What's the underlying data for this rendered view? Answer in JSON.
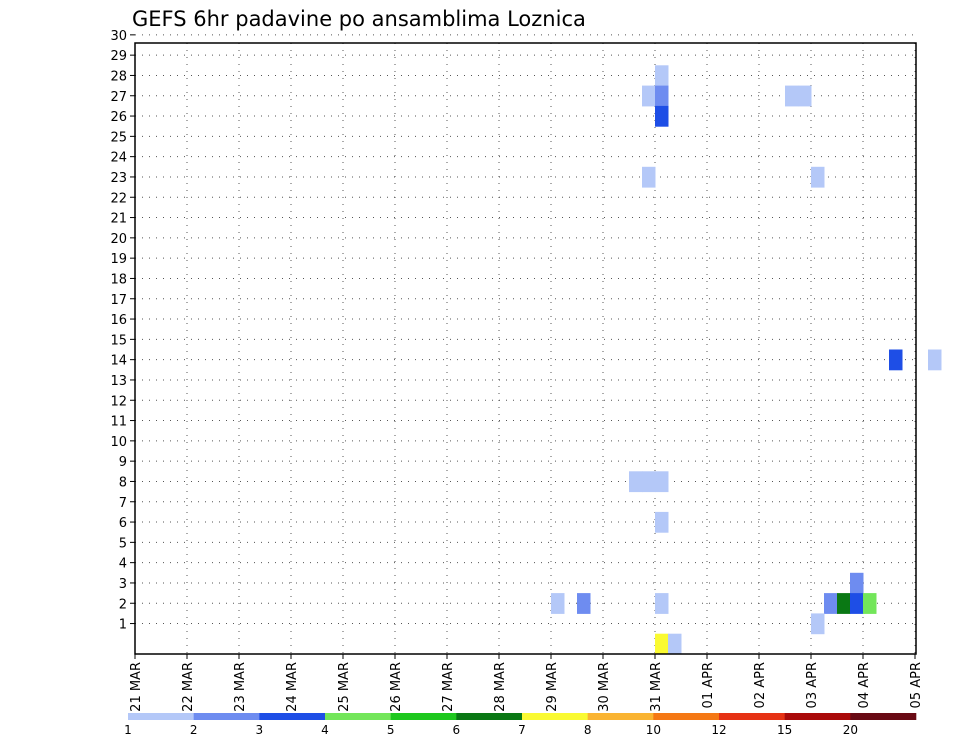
{
  "chart_data": {
    "type": "heatmap",
    "title": "GEFS 6hr padavine po ansamblima Loznica",
    "xlabel": "",
    "ylabel": "",
    "x_tick_labels": [
      "21 MAR",
      "22 MAR",
      "23 MAR",
      "24 MAR",
      "25 MAR",
      "26 MAR",
      "27 MAR",
      "28 MAR",
      "29 MAR",
      "30 MAR",
      "31 MAR",
      "01 APR",
      "02 APR",
      "03 APR",
      "04 APR",
      "05 APR"
    ],
    "y_tick_labels": [
      "1",
      "2",
      "3",
      "4",
      "5",
      "6",
      "7",
      "8",
      "9",
      "10",
      "11",
      "12",
      "13",
      "14",
      "15",
      "16",
      "17",
      "18",
      "19",
      "20",
      "21",
      "22",
      "23",
      "24",
      "25",
      "26",
      "27",
      "28",
      "29",
      "30"
    ],
    "x_step": "6 hr",
    "members": 30,
    "grid": true,
    "colorbar": {
      "labels": [
        "1",
        "2",
        "3",
        "4",
        "5",
        "6",
        "7",
        "8",
        "10",
        "12",
        "15",
        "20"
      ],
      "colors": [
        "#b4c8f8",
        "#6e8cf0",
        "#1e4ee6",
        "#73e65a",
        "#1ec81e",
        "#0a7814",
        "#fafa32",
        "#fab432",
        "#f57814",
        "#e63214",
        "#aa0a0a",
        "#690a14"
      ]
    },
    "cells": [
      [
        30,
        43.25,
        1
      ],
      [
        30,
        43.5,
        3
      ],
      [
        30,
        43.75,
        1
      ],
      [
        29,
        43.75,
        4
      ],
      [
        29,
        44.0,
        2
      ],
      [
        29,
        44.25,
        4
      ],
      [
        29,
        45.0,
        3
      ],
      [
        28,
        31.0,
        1
      ],
      [
        28,
        46.0,
        3
      ],
      [
        27,
        30.75,
        1
      ],
      [
        27,
        31.0,
        2
      ],
      [
        27,
        33.5,
        1
      ],
      [
        27,
        33.75,
        1
      ],
      [
        27,
        43.75,
        1
      ],
      [
        27,
        44.0,
        1
      ],
      [
        26,
        31.0,
        3
      ],
      [
        26,
        47.0,
        8
      ],
      [
        26,
        49.25,
        1
      ],
      [
        25,
        41.0,
        2
      ],
      [
        25,
        41.25,
        1
      ],
      [
        25,
        44.25,
        3
      ],
      [
        25,
        47.0,
        1
      ],
      [
        25,
        47.75,
        5
      ],
      [
        24,
        40.5,
        3
      ],
      [
        24,
        44.25,
        1
      ],
      [
        24,
        46.75,
        1
      ],
      [
        24,
        47.0,
        7
      ],
      [
        24,
        47.25,
        1
      ],
      [
        24,
        48.0,
        2
      ],
      [
        23,
        30.75,
        1
      ],
      [
        23,
        34.0,
        1
      ],
      [
        23,
        41.25,
        1
      ],
      [
        23,
        41.5,
        2
      ],
      [
        23,
        41.75,
        5
      ],
      [
        23,
        42.0,
        1
      ],
      [
        23,
        48.0,
        3
      ],
      [
        23,
        48.75,
        2
      ],
      [
        22,
        44.25,
        3
      ],
      [
        22,
        45.0,
        2
      ],
      [
        22,
        45.25,
        3
      ],
      [
        21,
        44.25,
        5
      ],
      [
        21,
        44.5,
        3
      ],
      [
        21,
        44.75,
        3
      ],
      [
        19,
        46.75,
        7
      ],
      [
        19,
        47.0,
        5
      ],
      [
        19,
        49.5,
        2
      ],
      [
        18,
        44.25,
        1
      ],
      [
        16,
        41.25,
        1
      ],
      [
        16,
        41.5,
        6
      ],
      [
        16,
        41.75,
        3
      ],
      [
        16,
        42.0,
        1
      ],
      [
        16,
        42.25,
        2
      ],
      [
        15,
        41.0,
        1
      ],
      [
        15,
        41.25,
        6
      ],
      [
        15,
        41.5,
        3
      ],
      [
        15,
        41.75,
        1
      ],
      [
        15,
        42.0,
        3
      ],
      [
        15,
        42.25,
        1
      ],
      [
        14,
        35.5,
        3
      ],
      [
        14,
        36.25,
        1
      ],
      [
        14,
        41.25,
        1
      ],
      [
        14,
        41.5,
        3
      ],
      [
        14,
        41.75,
        4
      ],
      [
        14,
        42.0,
        4
      ],
      [
        14,
        42.25,
        6
      ],
      [
        14,
        42.5,
        1
      ],
      [
        13,
        47.75,
        2
      ],
      [
        13,
        48.0,
        4
      ],
      [
        13,
        48.75,
        4
      ],
      [
        12,
        42.25,
        1
      ],
      [
        12,
        43.0,
        1
      ],
      [
        11,
        44.25,
        2
      ],
      [
        11,
        45.0,
        5
      ],
      [
        11,
        45.25,
        15
      ],
      [
        11,
        45.5,
        20
      ],
      [
        11,
        45.75,
        15
      ],
      [
        11,
        46.0,
        3
      ],
      [
        10,
        48.75,
        1
      ],
      [
        10,
        49.0,
        2
      ],
      [
        9,
        46.75,
        5
      ],
      [
        8,
        30.5,
        1
      ],
      [
        8,
        30.75,
        1
      ],
      [
        8,
        31.0,
        1
      ],
      [
        8,
        43.75,
        1
      ],
      [
        8,
        44.0,
        1
      ],
      [
        8,
        44.5,
        2
      ],
      [
        7,
        43.0,
        1
      ],
      [
        7,
        43.25,
        1
      ],
      [
        7,
        44.25,
        1
      ],
      [
        7,
        44.5,
        1
      ],
      [
        7,
        45.0,
        3
      ],
      [
        7,
        45.25,
        1
      ],
      [
        6,
        31.0,
        1
      ],
      [
        6,
        44.0,
        1
      ],
      [
        6,
        44.25,
        1
      ],
      [
        6,
        44.5,
        2
      ],
      [
        6,
        44.75,
        1
      ],
      [
        5,
        43.25,
        1
      ],
      [
        5,
        43.5,
        1
      ],
      [
        5,
        43.75,
        1
      ],
      [
        5,
        44.0,
        3
      ],
      [
        5,
        48.25,
        1
      ],
      [
        4,
        42.75,
        1
      ],
      [
        4,
        43.0,
        1
      ],
      [
        4,
        43.75,
        4
      ],
      [
        4,
        44.0,
        12
      ],
      [
        4,
        44.25,
        2
      ],
      [
        4,
        44.5,
        15
      ],
      [
        4,
        44.75,
        10
      ],
      [
        3,
        34.75,
        2
      ],
      [
        3,
        49.0,
        1
      ],
      [
        2,
        29.0,
        1
      ],
      [
        2,
        29.5,
        2
      ],
      [
        2,
        31.0,
        1
      ],
      [
        2,
        34.25,
        2
      ],
      [
        2,
        34.5,
        6
      ],
      [
        2,
        34.75,
        3
      ],
      [
        2,
        35.0,
        4
      ],
      [
        2,
        49.5,
        1
      ],
      [
        1,
        34.0,
        1
      ],
      [
        1,
        41.25,
        1
      ],
      [
        1,
        41.5,
        1
      ],
      [
        1,
        43.75,
        1
      ],
      [
        1,
        44.0,
        7
      ],
      [
        0,
        31.0,
        7
      ],
      [
        0,
        31.25,
        1
      ]
    ]
  }
}
